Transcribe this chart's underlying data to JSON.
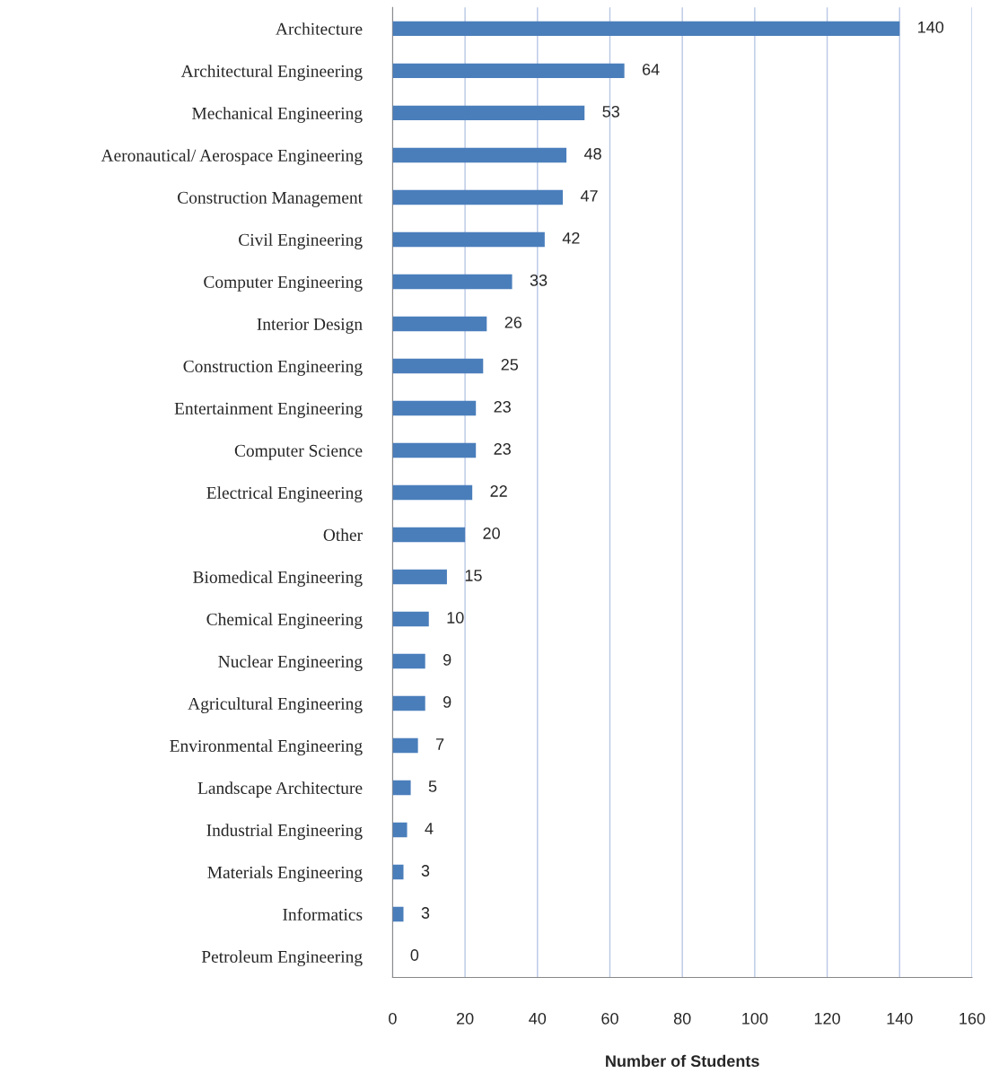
{
  "chart_data": {
    "type": "bar",
    "orientation": "horizontal",
    "xlabel": "Number of Students",
    "categories": [
      "Architecture",
      "Architectural Engineering",
      "Mechanical Engineering",
      "Aeronautical/ Aerospace Engineering",
      "Construction Management",
      "Civil Engineering",
      "Computer Engineering",
      "Interior Design",
      "Construction Engineering",
      "Entertainment Engineering",
      "Computer Science",
      "Electrical Engineering",
      "Other",
      "Biomedical Engineering",
      "Chemical Engineering",
      "Nuclear Engineering",
      "Agricultural Engineering",
      "Environmental Engineering",
      "Landscape Architecture",
      "Industrial Engineering",
      "Materials Engineering",
      "Informatics",
      "Petroleum Engineering"
    ],
    "values": [
      140,
      64,
      53,
      48,
      47,
      42,
      33,
      26,
      25,
      23,
      23,
      22,
      20,
      15,
      10,
      9,
      9,
      7,
      5,
      4,
      3,
      3,
      0
    ],
    "color": "#4a7ebb",
    "xlim": [
      0,
      160
    ],
    "xticks": [
      0,
      20,
      40,
      60,
      80,
      100,
      120,
      140,
      160
    ],
    "grid": "x",
    "data_labels": true
  }
}
